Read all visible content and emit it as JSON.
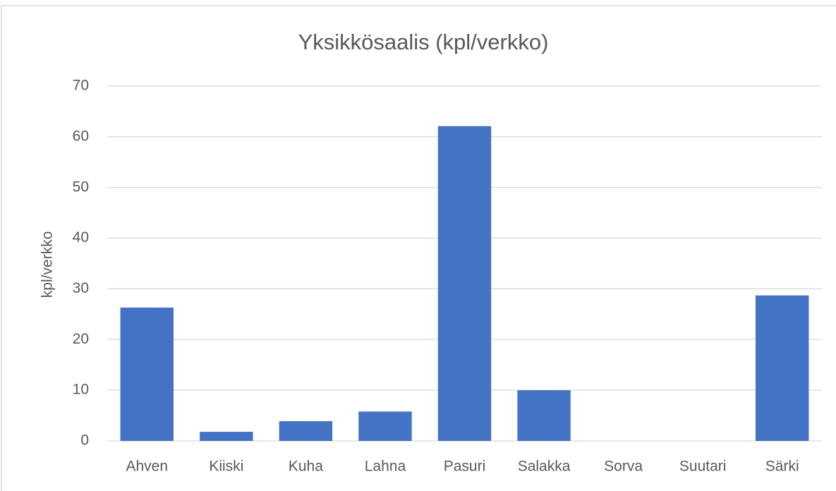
{
  "chart_data": {
    "type": "bar",
    "title": "Yksikkösaalis (kpl/verkko)",
    "y_label": "kpl/verkko",
    "categories": [
      "Ahven",
      "Kiiski",
      "Kuha",
      "Lahna",
      "Pasuri",
      "Salakka",
      "Sorva",
      "Suutari",
      "Särki"
    ],
    "values": [
      26.3,
      1.8,
      3.9,
      5.8,
      62.1,
      10.0,
      0,
      0,
      28.7
    ],
    "color": "#4472c4",
    "ylim": [
      0,
      70
    ],
    "yticks": [
      0,
      10,
      20,
      30,
      40,
      50,
      60,
      70
    ],
    "grid": true
  }
}
